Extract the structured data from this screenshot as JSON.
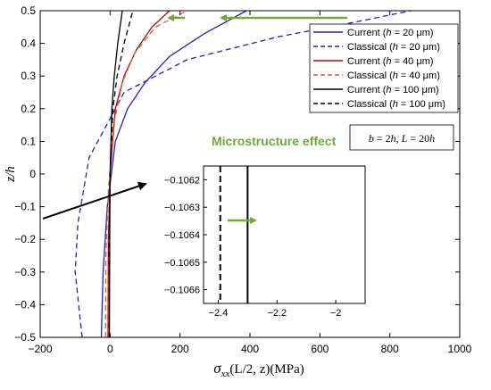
{
  "chart_data": {
    "type": "line",
    "title": "",
    "xlabel": "σxx(L/2, z)(MPa)",
    "xlabel_parts": {
      "sym": "σ",
      "sub": "xx",
      "rest": "(L/2, z)(MPa)"
    },
    "ylabel": "z/h",
    "xlim": [
      -200,
      1000
    ],
    "ylim": [
      -0.5,
      0.5
    ],
    "xticks": [
      -200,
      0,
      200,
      400,
      600,
      800,
      1000
    ],
    "yticks": [
      -0.5,
      -0.4,
      -0.3,
      -0.2,
      -0.1,
      0,
      0.1,
      0.2,
      0.3,
      0.4,
      0.5
    ],
    "grid": false,
    "legend_position": "top-right",
    "series": [
      {
        "name": "Current (h = 20 μm)",
        "legend_parts": [
          "Current (",
          "h",
          " = 20 μm)"
        ],
        "color": "#1f1fc8",
        "dash": "solid",
        "x": [
          -25,
          -20,
          -8,
          15,
          50,
          100,
          170,
          270,
          390
        ],
        "y": [
          -0.5,
          -0.3,
          -0.1,
          0.1,
          0.2,
          0.28,
          0.36,
          0.43,
          0.5
        ]
      },
      {
        "name": "Classical (h = 20 μm)",
        "legend_parts": [
          "Classical (",
          "h",
          " = 20 μm)"
        ],
        "color": "#1f1fc8",
        "dash": "dashed",
        "x": [
          -80,
          -100,
          -92,
          -60,
          40,
          220,
          480,
          700,
          860
        ],
        "y": [
          -0.5,
          -0.3,
          -0.15,
          0.05,
          0.25,
          0.35,
          0.42,
          0.465,
          0.5
        ]
      },
      {
        "name": "Current (h = 40 μm)",
        "legend_parts": [
          "Current (",
          "h",
          " = 40 μm)"
        ],
        "color": "#c00000",
        "dash": "solid",
        "x": [
          -6,
          -5,
          0,
          15,
          40,
          75,
          120,
          170
        ],
        "y": [
          -0.5,
          -0.2,
          0.0,
          0.2,
          0.3,
          0.38,
          0.45,
          0.5
        ]
      },
      {
        "name": "Classical (h = 40 μm)",
        "legend_parts": [
          "Classical (",
          "h",
          " = 40 μm)"
        ],
        "color": "#c8643c",
        "dash": "dashed",
        "x": [
          -13,
          -12,
          -5,
          10,
          35,
          70,
          130,
          220
        ],
        "y": [
          -0.5,
          -0.25,
          -0.05,
          0.15,
          0.28,
          0.37,
          0.45,
          0.5
        ]
      },
      {
        "name": "Current (h = 100 μm)",
        "legend_parts": [
          "Current (",
          "h",
          " = 100 μm)"
        ],
        "color": "#000000",
        "dash": "solid",
        "x": [
          -2,
          -1,
          0,
          5,
          12,
          22,
          35
        ],
        "y": [
          -0.5,
          -0.2,
          0.0,
          0.2,
          0.3,
          0.4,
          0.5
        ]
      },
      {
        "name": "Classical (h = 100 μm)",
        "legend_parts": [
          "Classical (",
          "h",
          " = 100 μm)"
        ],
        "color": "#000000",
        "dash": "dashed",
        "x": [
          -2.4,
          -2,
          0,
          8,
          20,
          40,
          65
        ],
        "y": [
          -0.5,
          -0.2,
          0.0,
          0.2,
          0.3,
          0.4,
          0.5
        ]
      }
    ],
    "annotations": {
      "microstructure": "Microstructure effect",
      "box_text": "b = 2h, L = 20h",
      "box_parts": {
        "b": "b",
        "eq1": " = 2",
        "h1": "h",
        "comma": ", ",
        "L": "L",
        "eq2": " = 20",
        "h2": "h"
      }
    },
    "inset": {
      "xlim": [
        -2.45,
        -1.9
      ],
      "ylim": [
        -0.10665,
        -0.10615
      ],
      "xticks": [
        -2.4,
        -2.2,
        -2
      ],
      "yticks": [
        -0.1062,
        -0.1063,
        -0.1064,
        -0.1065,
        -0.1066
      ],
      "xtick_labels": [
        "−2.4",
        "−2.2",
        "−2"
      ],
      "ytick_labels": [
        "−0.1062",
        "−0.1063",
        "−0.1064",
        "−0.1065",
        "−0.1066"
      ],
      "dashed_x": -2.393,
      "solid_x": -2.3
    },
    "colors": {
      "arrow_green": "#70a83a"
    }
  }
}
